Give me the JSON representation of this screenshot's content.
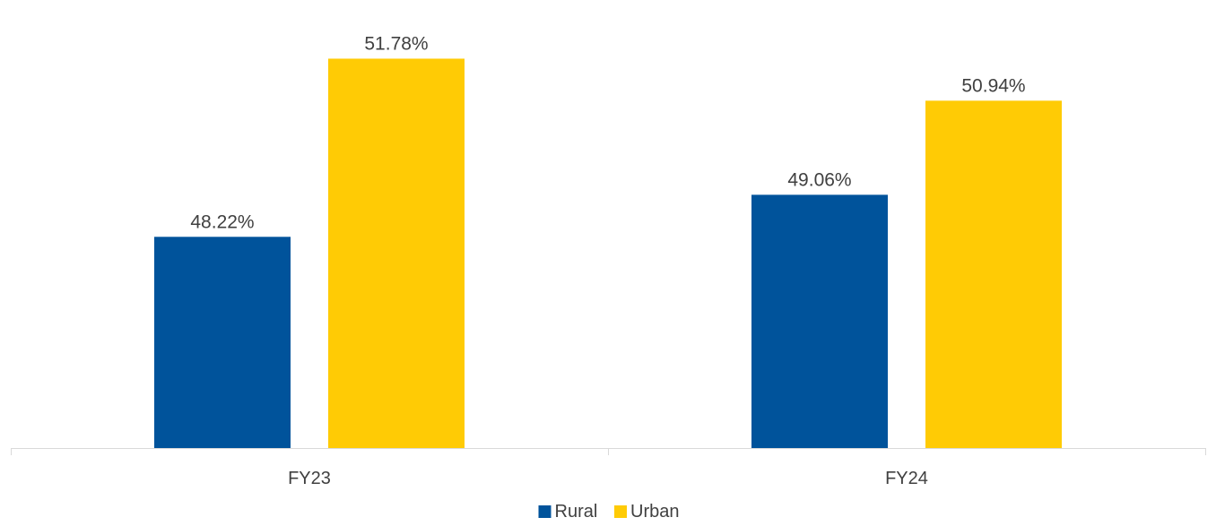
{
  "chart_data": {
    "type": "bar",
    "title": "",
    "xlabel": "",
    "ylabel": "",
    "categories": [
      "FY23",
      "FY24"
    ],
    "series": [
      {
        "name": "Rural",
        "color": "#00539b",
        "values": [
          48.22,
          49.06
        ],
        "labels": [
          "48.22%",
          "49.06%"
        ]
      },
      {
        "name": "Urban",
        "color": "#ffcb05",
        "values": [
          51.78,
          50.94
        ],
        "labels": [
          "51.78%",
          "50.94%"
        ]
      }
    ],
    "ylim": [
      44,
      52.2
    ],
    "grid": false,
    "legend_position": "bottom",
    "axis_color": "#d9d9d9",
    "text_color": "#404040"
  }
}
